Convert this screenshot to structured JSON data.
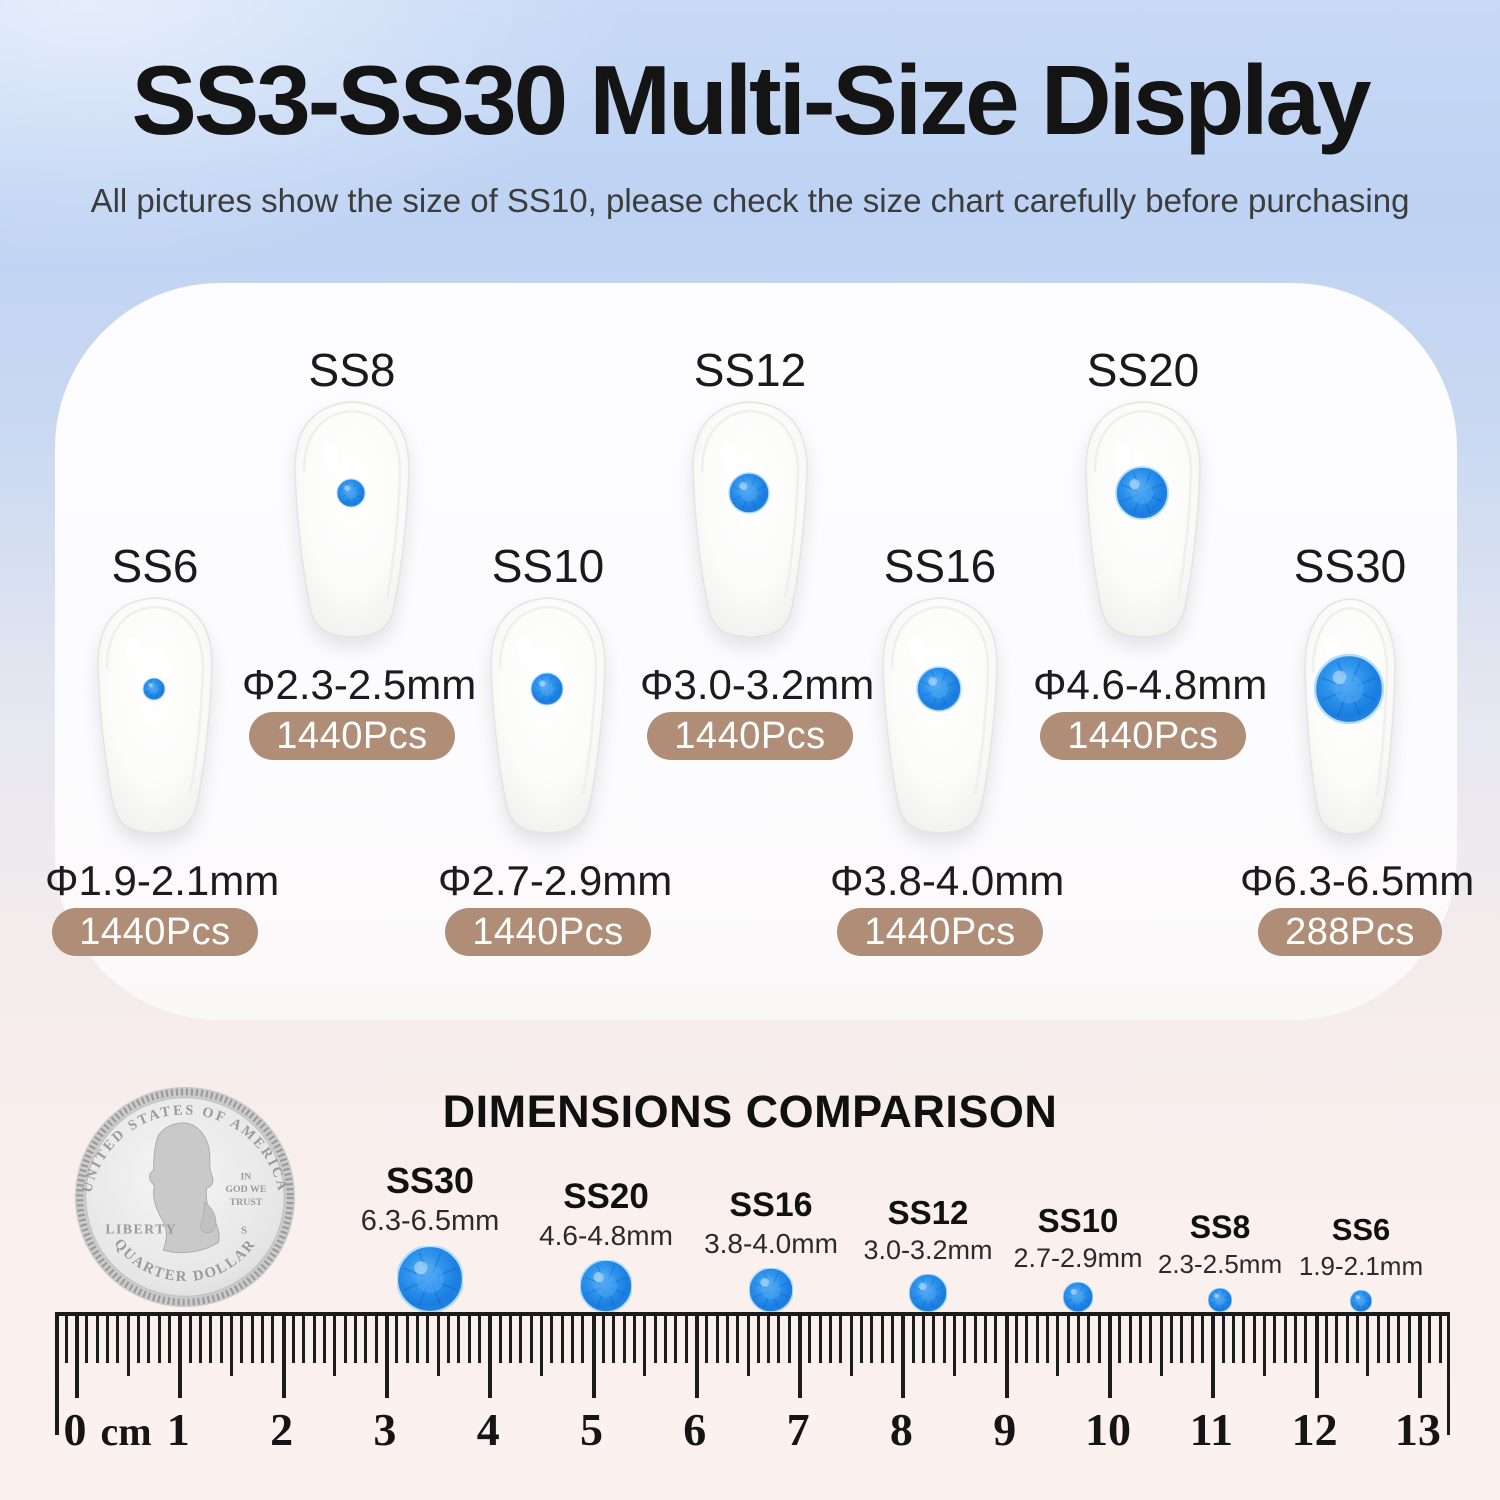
{
  "header": {
    "title": "SS3-SS30 Multi-Size Display",
    "subtitle": "All pictures show the size of SS10, please check the size chart carefully  before purchasing"
  },
  "colors": {
    "gem_blue": "#1f82e0",
    "badge_tan": "#b08d76",
    "bg_top_blue": "#bed3f3",
    "bg_bottom_pink": "#fbf1ee"
  },
  "sizes": [
    {
      "name": "SS6",
      "diameter": "Φ1.9-2.1mm",
      "count": "1440Pcs"
    },
    {
      "name": "SS8",
      "diameter": "Φ2.3-2.5mm",
      "count": "1440Pcs"
    },
    {
      "name": "SS10",
      "diameter": "Φ2.7-2.9mm",
      "count": "1440Pcs"
    },
    {
      "name": "SS12",
      "diameter": "Φ3.0-3.2mm",
      "count": "1440Pcs"
    },
    {
      "name": "SS16",
      "diameter": "Φ3.8-4.0mm",
      "count": "1440Pcs"
    },
    {
      "name": "SS20",
      "diameter": "Φ4.6-4.8mm",
      "count": "1440Pcs"
    },
    {
      "name": "SS30",
      "diameter": "Φ6.3-6.5mm",
      "count": "288Pcs"
    }
  ],
  "comparison": {
    "heading": "DIMENSIONS COMPARISON",
    "coin": {
      "top_text": "UNITED STATES OF AMERICA",
      "bottom_text": "QUARTER DOLLAR",
      "left_text": "LIBERTY",
      "motto_line1": "IN",
      "motto_line2": "GOD WE",
      "motto_line3": "TRUST",
      "mint_mark": "S"
    },
    "items": [
      {
        "name": "SS30",
        "range": "6.3-6.5mm"
      },
      {
        "name": "SS20",
        "range": "4.6-4.8mm"
      },
      {
        "name": "SS16",
        "range": "3.8-4.0mm"
      },
      {
        "name": "SS12",
        "range": "3.0-3.2mm"
      },
      {
        "name": "SS10",
        "range": "2.7-2.9mm"
      },
      {
        "name": "SS8",
        "range": "2.3-2.5mm"
      },
      {
        "name": "SS6",
        "range": "1.9-2.1mm"
      }
    ],
    "ruler": {
      "unit": "cm",
      "numbers": [
        "0",
        "1",
        "2",
        "3",
        "4",
        "5",
        "6",
        "7",
        "8",
        "9",
        "10",
        "11",
        "12",
        "13"
      ]
    }
  }
}
